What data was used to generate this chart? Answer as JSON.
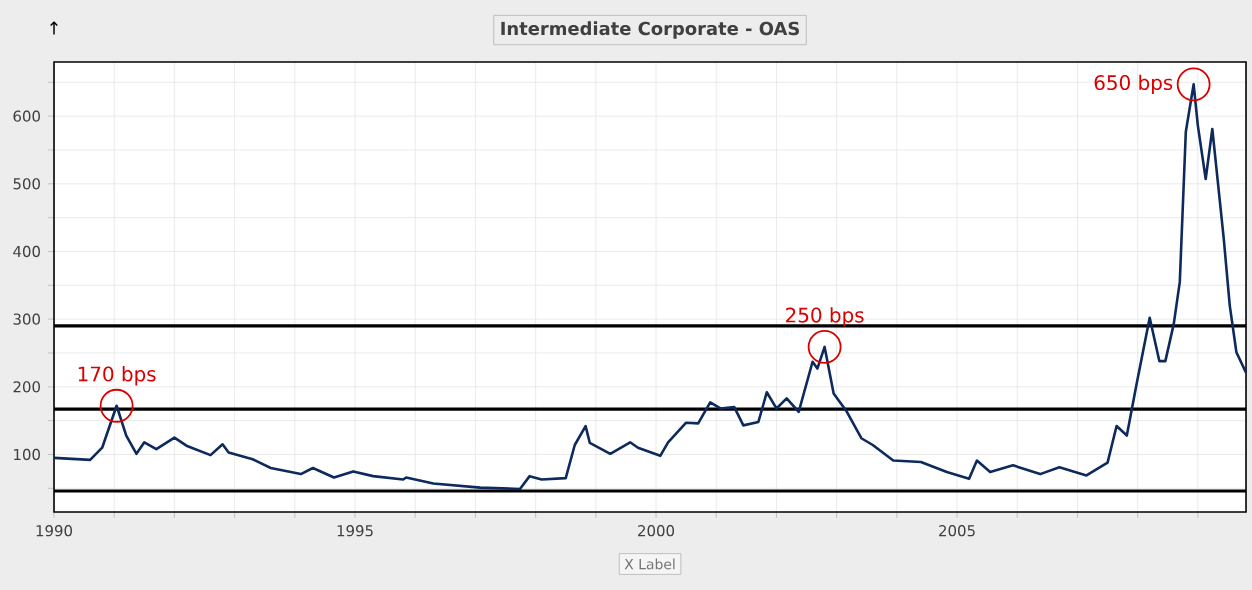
{
  "chart_data": {
    "type": "line",
    "title": "Intermediate Corporate - OAS",
    "xlabel": "X Label",
    "x": [
      1990.0,
      1990.6,
      1990.8,
      1991.04,
      1991.2,
      1991.37,
      1991.5,
      1991.7,
      1992.0,
      1992.2,
      1992.6,
      1992.8,
      1992.9,
      1993.3,
      1993.6,
      1994.1,
      1994.3,
      1994.65,
      1994.97,
      1995.3,
      1995.8,
      1995.85,
      1996.3,
      1997.08,
      1997.74,
      1997.9,
      1998.1,
      1998.5,
      1998.65,
      1998.83,
      1998.9,
      1999.24,
      1999.57,
      1999.7,
      2000.07,
      2000.2,
      2000.5,
      2000.7,
      2000.9,
      2001.07,
      2001.3,
      2001.45,
      2001.7,
      2001.84,
      2002.0,
      2002.17,
      2002.37,
      2002.6,
      2002.68,
      2002.8,
      2002.95,
      2003.17,
      2003.41,
      2003.6,
      2003.94,
      2004.4,
      2004.83,
      2005.2,
      2005.33,
      2005.55,
      2005.93,
      2006.38,
      2006.7,
      2007.15,
      2007.5,
      2007.65,
      2007.82,
      2007.98,
      2008.2,
      2008.36,
      2008.46,
      2008.6,
      2008.7,
      2008.8,
      2008.93,
      2009.0,
      2009.13,
      2009.24,
      2009.43,
      2009.53,
      2009.64,
      2009.8
    ],
    "series": [
      {
        "color": "#0d2a5c",
        "values": [
          95,
          92,
          110,
          172,
          128,
          101,
          118,
          108,
          125,
          113,
          99,
          115,
          103,
          93,
          80,
          71,
          80,
          66,
          75,
          68,
          63,
          66,
          57,
          51,
          49,
          68,
          63,
          65,
          114,
          142,
          117,
          101,
          118,
          110,
          98,
          118,
          147,
          146,
          177,
          168,
          170,
          143,
          148,
          192,
          168,
          183,
          163,
          237,
          227,
          259,
          190,
          163,
          124,
          114,
          91,
          89,
          74,
          64,
          91,
          74,
          84,
          71,
          81,
          69,
          88,
          142,
          128,
          203,
          302,
          238,
          238,
          293,
          355,
          577,
          647,
          586,
          507,
          581,
          419,
          320,
          251,
          221
        ]
      }
    ],
    "xlim": [
      1990,
      2009.8
    ],
    "ylim": [
      15,
      680
    ],
    "xticks": [
      1990,
      {
        "value": 1991,
        "label": null
      },
      {
        "value": 1992,
        "label": null
      },
      {
        "value": 1993,
        "label": null
      },
      {
        "value": 1994,
        "label": null
      },
      1995,
      {
        "value": 1996,
        "label": null
      },
      {
        "value": 1997,
        "label": null
      },
      {
        "value": 1998,
        "label": null
      },
      {
        "value": 1999,
        "label": null
      },
      2000,
      {
        "value": 2001,
        "label": null
      },
      {
        "value": 2002,
        "label": null
      },
      {
        "value": 2003,
        "label": null
      },
      {
        "value": 2004,
        "label": null
      },
      2005,
      {
        "value": 2006,
        "label": null
      },
      {
        "value": 2007,
        "label": null
      },
      {
        "value": 2008,
        "label": null
      },
      {
        "value": 2009,
        "label": null
      }
    ],
    "yticks": [
      {
        "value": 50,
        "label": null
      },
      100,
      {
        "value": 150,
        "label": null
      },
      200,
      {
        "value": 250,
        "label": null
      },
      300,
      {
        "value": 350,
        "label": null
      },
      400,
      {
        "value": 450,
        "label": null
      },
      500,
      {
        "value": 550,
        "label": null
      },
      600,
      {
        "value": 650,
        "label": null
      }
    ],
    "grid": true,
    "ref_lines": [
      {
        "axis": "y",
        "value": 290,
        "color": "#000000"
      },
      {
        "axis": "y",
        "value": 167,
        "color": "#000000"
      },
      {
        "axis": "y",
        "value": 46,
        "color": "#000000"
      }
    ],
    "annotations": [
      {
        "text": "170 bps",
        "x": 1991.04,
        "y": 172
      },
      {
        "text": "250 bps",
        "x": 2002.8,
        "y": 259
      },
      {
        "text": "650 bps",
        "x": 2008.93,
        "y": 647
      },
      "↑"
    ]
  }
}
